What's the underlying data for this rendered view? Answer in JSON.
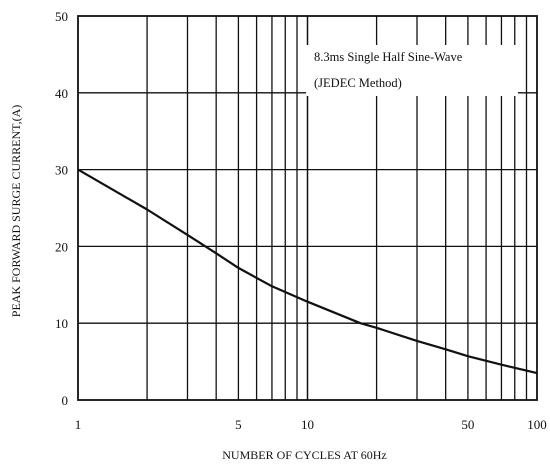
{
  "chart_data": {
    "type": "line",
    "title": "",
    "xlabel": "NUMBER OF CYCLES AT 60Hz",
    "ylabel": "PEAK FORWARD SURGE CURRENT,(A)",
    "x_scale": "log",
    "xlim": [
      1,
      100
    ],
    "ylim": [
      0,
      50
    ],
    "x_ticks": [
      1,
      5,
      10,
      50,
      100
    ],
    "x_tick_labels": [
      "1",
      "5",
      "10",
      "50",
      "100"
    ],
    "y_ticks": [
      0,
      10,
      20,
      30,
      40,
      50
    ],
    "y_tick_labels": [
      "0",
      "10",
      "20",
      "30",
      "40",
      "50"
    ],
    "grid": true,
    "annotation": {
      "lines": [
        "8.3ms Single Half Sine-Wave",
        "(JEDEC Method)"
      ],
      "placement": "top-right"
    },
    "series": [
      {
        "x": [
          1,
          2,
          3,
          4,
          5,
          7,
          10,
          17,
          20,
          30,
          40,
          50,
          70,
          100
        ],
        "y": [
          30,
          24.8,
          21.5,
          19.1,
          17.2,
          14.8,
          12.8,
          10.0,
          9.4,
          7.7,
          6.6,
          5.7,
          4.6,
          3.5
        ]
      }
    ],
    "colors": {
      "line": "#111111",
      "grid": "#111111",
      "background": "#ffffff"
    }
  }
}
